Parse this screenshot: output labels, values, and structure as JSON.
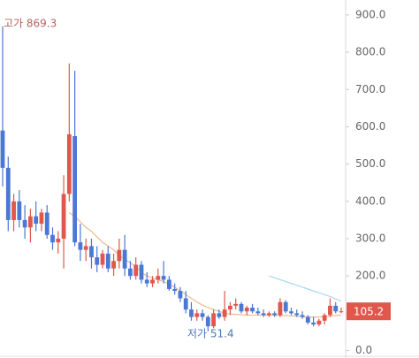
{
  "chart_data": {
    "type": "candlestick",
    "high_label": "고가 869.3",
    "low_label": "저가 51.4",
    "up_color": "#e0574b",
    "down_color": "#4a78d2",
    "open": [
      590,
      490,
      350,
      400,
      350,
      330,
      360,
      340,
      370,
      310,
      290,
      300,
      420,
      575,
      290,
      270,
      280,
      250,
      230,
      260,
      220,
      240,
      270,
      220,
      200,
      230,
      190,
      180,
      190,
      200,
      190,
      165,
      160,
      140,
      110,
      90,
      100,
      90,
      65,
      100,
      90,
      110,
      120,
      125,
      105,
      115,
      105,
      100,
      95,
      100,
      95,
      130,
      105,
      100,
      95,
      90,
      75,
      70,
      80,
      95,
      120,
      105
    ],
    "high": [
      869.3,
      520,
      420,
      430,
      390,
      380,
      400,
      380,
      390,
      330,
      320,
      470,
      770,
      750,
      340,
      300,
      300,
      280,
      270,
      280,
      260,
      300,
      310,
      240,
      250,
      240,
      210,
      200,
      220,
      240,
      200,
      180,
      170,
      160,
      130,
      110,
      110,
      95,
      110,
      110,
      160,
      130,
      140,
      130,
      120,
      125,
      115,
      110,
      105,
      105,
      140,
      135,
      115,
      110,
      105,
      95,
      90,
      85,
      100,
      140,
      130,
      115
    ],
    "low": [
      440,
      320,
      320,
      330,
      300,
      290,
      320,
      320,
      300,
      270,
      260,
      220,
      400,
      280,
      240,
      240,
      220,
      210,
      220,
      210,
      200,
      220,
      200,
      190,
      190,
      180,
      170,
      170,
      180,
      180,
      160,
      150,
      130,
      100,
      80,
      80,
      80,
      51.4,
      60,
      85,
      80,
      95,
      110,
      100,
      95,
      100,
      95,
      90,
      90,
      90,
      90,
      100,
      95,
      90,
      85,
      70,
      65,
      65,
      70,
      90,
      100,
      100
    ],
    "close": [
      490,
      350,
      400,
      350,
      330,
      360,
      340,
      370,
      310,
      290,
      300,
      420,
      580,
      290,
      270,
      280,
      250,
      230,
      260,
      220,
      240,
      270,
      220,
      200,
      230,
      190,
      180,
      190,
      200,
      190,
      165,
      160,
      140,
      110,
      90,
      100,
      90,
      65,
      100,
      90,
      110,
      120,
      125,
      105,
      115,
      105,
      100,
      95,
      100,
      95,
      130,
      105,
      100,
      95,
      90,
      75,
      70,
      80,
      95,
      120,
      105,
      105.2
    ],
    "lines": [
      {
        "color": "#eeb98f",
        "values": [
          null,
          null,
          null,
          null,
          null,
          null,
          null,
          null,
          null,
          null,
          null,
          null,
          370,
          360,
          345,
          330,
          320,
          305,
          290,
          280,
          270,
          255,
          245,
          235,
          225,
          210,
          200,
          195,
          190,
          185,
          178,
          170,
          160,
          150,
          140,
          130,
          122,
          115,
          110,
          105,
          100,
          98,
          97,
          96,
          95,
          95,
          95,
          95,
          95,
          95,
          94,
          94,
          93,
          92,
          91,
          90,
          90,
          90,
          91,
          92,
          94,
          95
        ]
      },
      {
        "color": "#a8d8ec",
        "values": [
          null,
          null,
          null,
          null,
          null,
          null,
          null,
          null,
          null,
          null,
          null,
          null,
          null,
          null,
          null,
          null,
          null,
          null,
          null,
          null,
          null,
          null,
          null,
          null,
          null,
          null,
          null,
          null,
          null,
          null,
          null,
          null,
          null,
          null,
          null,
          null,
          null,
          null,
          null,
          null,
          null,
          null,
          null,
          null,
          null,
          null,
          null,
          null,
          200,
          195,
          190,
          185,
          180,
          175,
          170,
          165,
          160,
          155,
          150,
          145,
          138,
          133
        ]
      }
    ],
    "ylim": [
      -20,
      940
    ],
    "yticks": [
      {
        "value": 0,
        "label": "0.0"
      },
      {
        "value": 100,
        "label": "100.0"
      },
      {
        "value": 200,
        "label": "200.0"
      },
      {
        "value": 300,
        "label": "300.0"
      },
      {
        "value": 400,
        "label": "400.0"
      },
      {
        "value": 500,
        "label": "500.0"
      },
      {
        "value": 600,
        "label": "600.0"
      },
      {
        "value": 700,
        "label": "700.0"
      },
      {
        "value": 800,
        "label": "800.0"
      },
      {
        "value": 900,
        "label": "900.0"
      }
    ]
  }
}
